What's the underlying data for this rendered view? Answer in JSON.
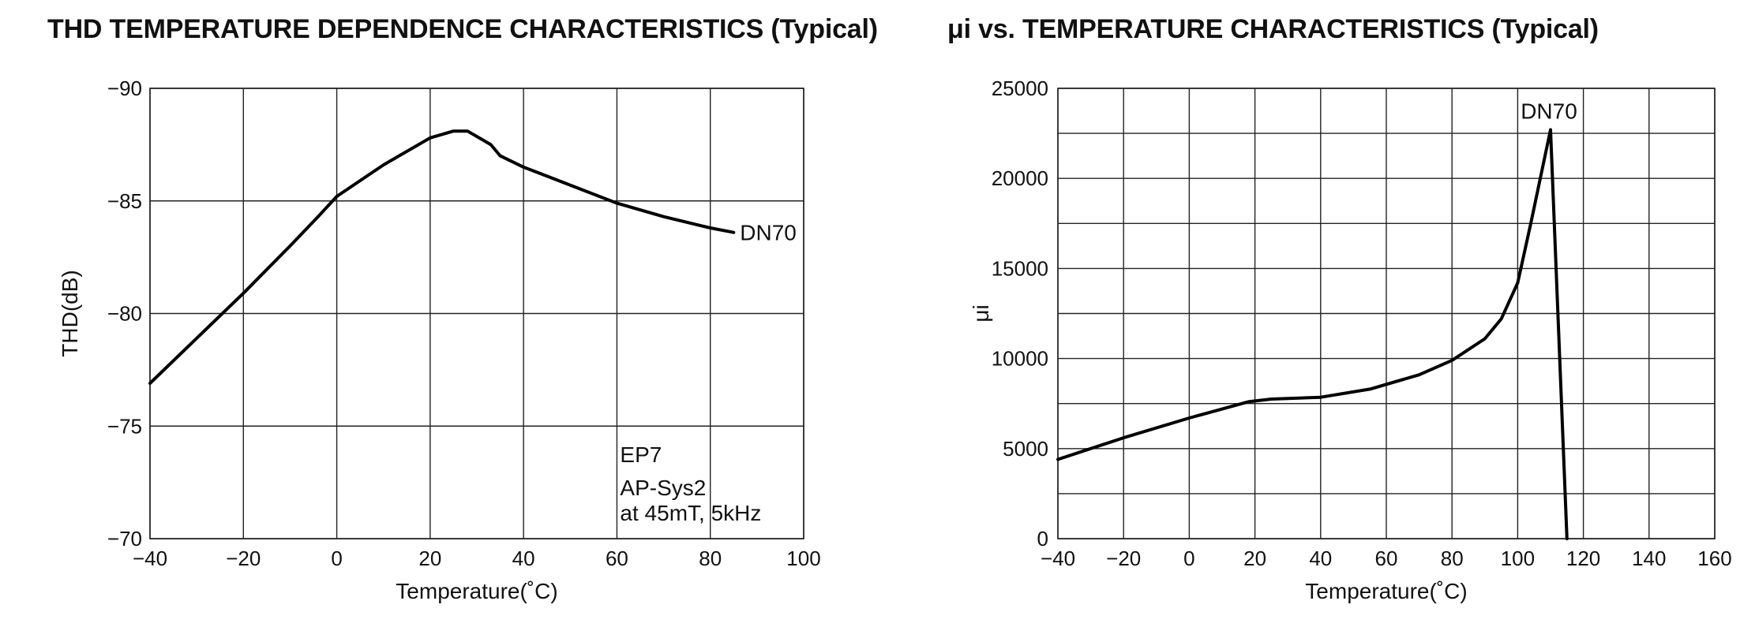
{
  "chart_data": [
    {
      "type": "line",
      "title": "THD TEMPERATURE DEPENDENCE CHARACTERISTICS (Typical)",
      "xlabel": "Temperature(˚C)",
      "ylabel": "THD(dB)",
      "xlim": [
        -40,
        100
      ],
      "ylim": [
        -70,
        -90
      ],
      "x_ticks": [
        "-40",
        "-20",
        "0",
        "20",
        "40",
        "60",
        "80",
        "100"
      ],
      "y_ticks": [
        "-90",
        "-85",
        "-80",
        "-75",
        "-70"
      ],
      "grid": true,
      "annotations": [
        "EP7",
        "AP-Sys2",
        "at 45mT, 5kHz"
      ],
      "series": [
        {
          "name": "DN70",
          "x": [
            -40,
            -30,
            -20,
            -10,
            -4,
            0,
            10,
            20,
            25,
            28,
            33,
            35,
            40,
            45,
            50,
            60,
            70,
            80,
            85
          ],
          "y": [
            -76.9,
            -78.9,
            -80.9,
            -83.0,
            -84.3,
            -85.2,
            -86.6,
            -87.8,
            -88.1,
            -88.1,
            -87.5,
            -87.0,
            -86.5,
            -86.1,
            -85.7,
            -84.9,
            -84.3,
            -83.8,
            -83.6
          ]
        }
      ]
    },
    {
      "type": "line",
      "title": "μi vs. TEMPERATURE CHARACTERISTICS (Typical)",
      "xlabel": "Temperature(˚C)",
      "ylabel": "μi",
      "xlim": [
        -40,
        160
      ],
      "ylim": [
        0,
        25000
      ],
      "x_ticks": [
        "-40",
        "-20",
        "0",
        "20",
        "40",
        "60",
        "80",
        "100",
        "120",
        "140",
        "160"
      ],
      "y_ticks": [
        "0",
        "5000",
        "10000",
        "15000",
        "20000",
        "25000"
      ],
      "grid": true,
      "series": [
        {
          "name": "DN70",
          "x": [
            -40,
            -20,
            0,
            18,
            25,
            40,
            55,
            70,
            80,
            90,
            95,
            100,
            104,
            110,
            115
          ],
          "y": [
            4400,
            5600,
            6700,
            7600,
            7750,
            7850,
            8300,
            9100,
            9900,
            11100,
            12200,
            14200,
            17500,
            22700,
            0
          ]
        }
      ]
    }
  ]
}
